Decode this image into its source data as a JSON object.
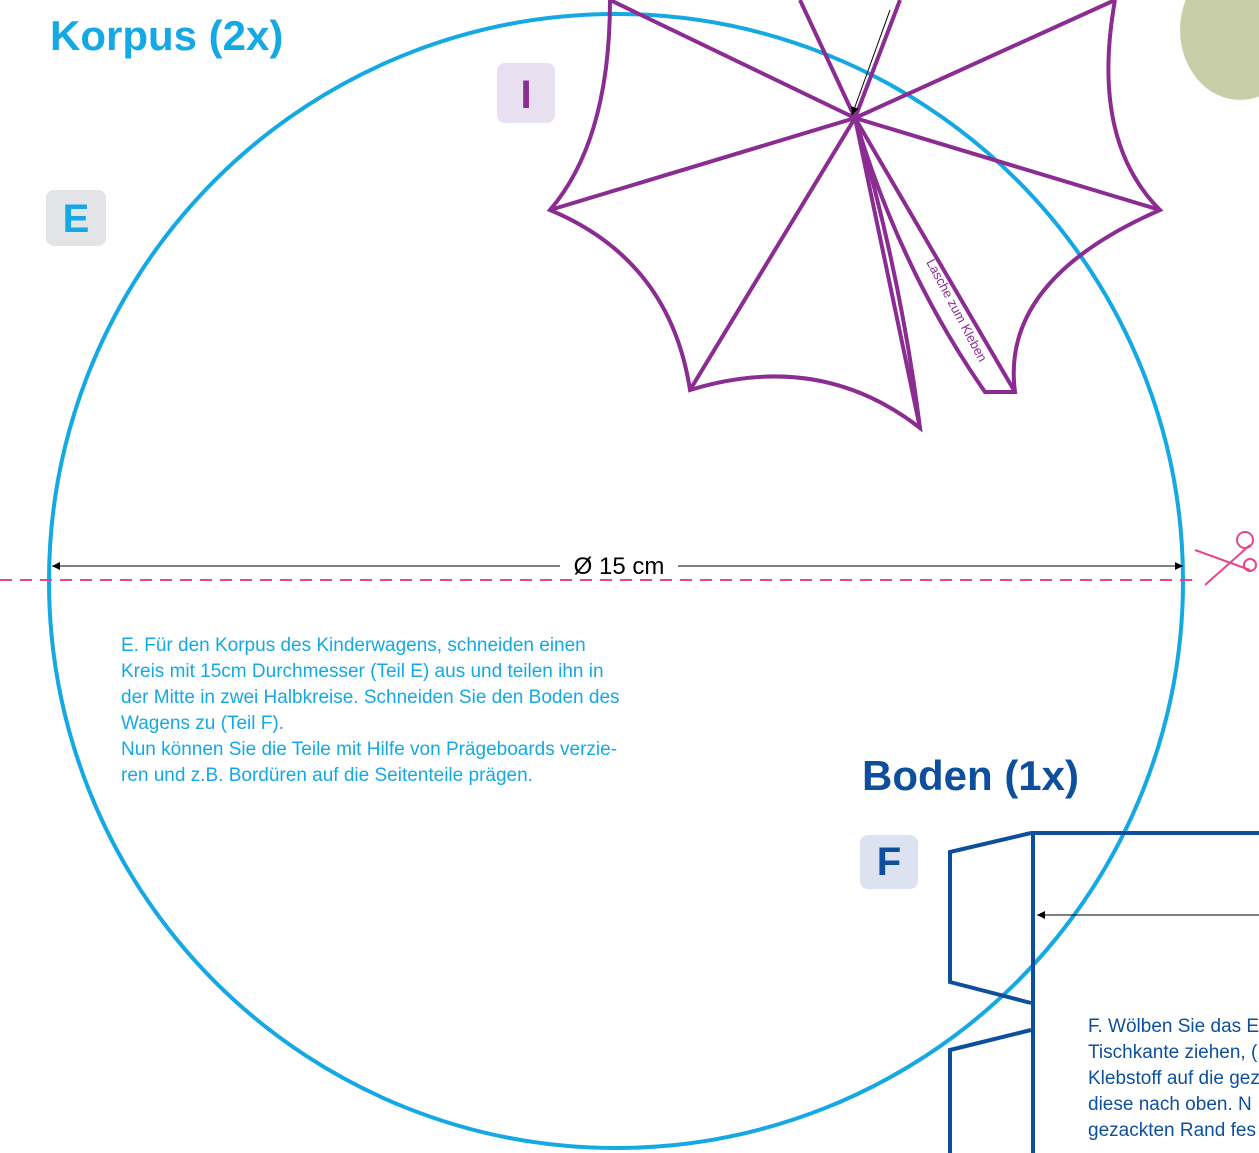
{
  "header": {
    "title": "Korpus (2x)"
  },
  "part_e": {
    "label": "E",
    "dimension": "Ø 15 cm",
    "instructions": [
      "E. Für den Korpus des Kinderwagens, schneiden einen",
      "Kreis mit 15cm Durchmesser (Teil E)  aus und teilen ihn in",
      "der Mitte in zwei Halbkreise. Schneiden Sie den Boden des",
      "Wagens zu (Teil F).",
      "Nun können Sie die Teile mit Hilfe von Prägeboards verzie-",
      "ren und z.B. Bordüren auf die Seitenteile prägen."
    ]
  },
  "part_i": {
    "label": "I",
    "tab": "Lasche zum Kleben"
  },
  "part_f": {
    "title": "Boden (1x)",
    "label": "F",
    "instructions": [
      "F. Wölben Sie das E",
      "Tischkante ziehen, (",
      "Klebstoff auf die gez",
      "diese nach oben. N",
      "gezackten Rand fes"
    ]
  }
}
